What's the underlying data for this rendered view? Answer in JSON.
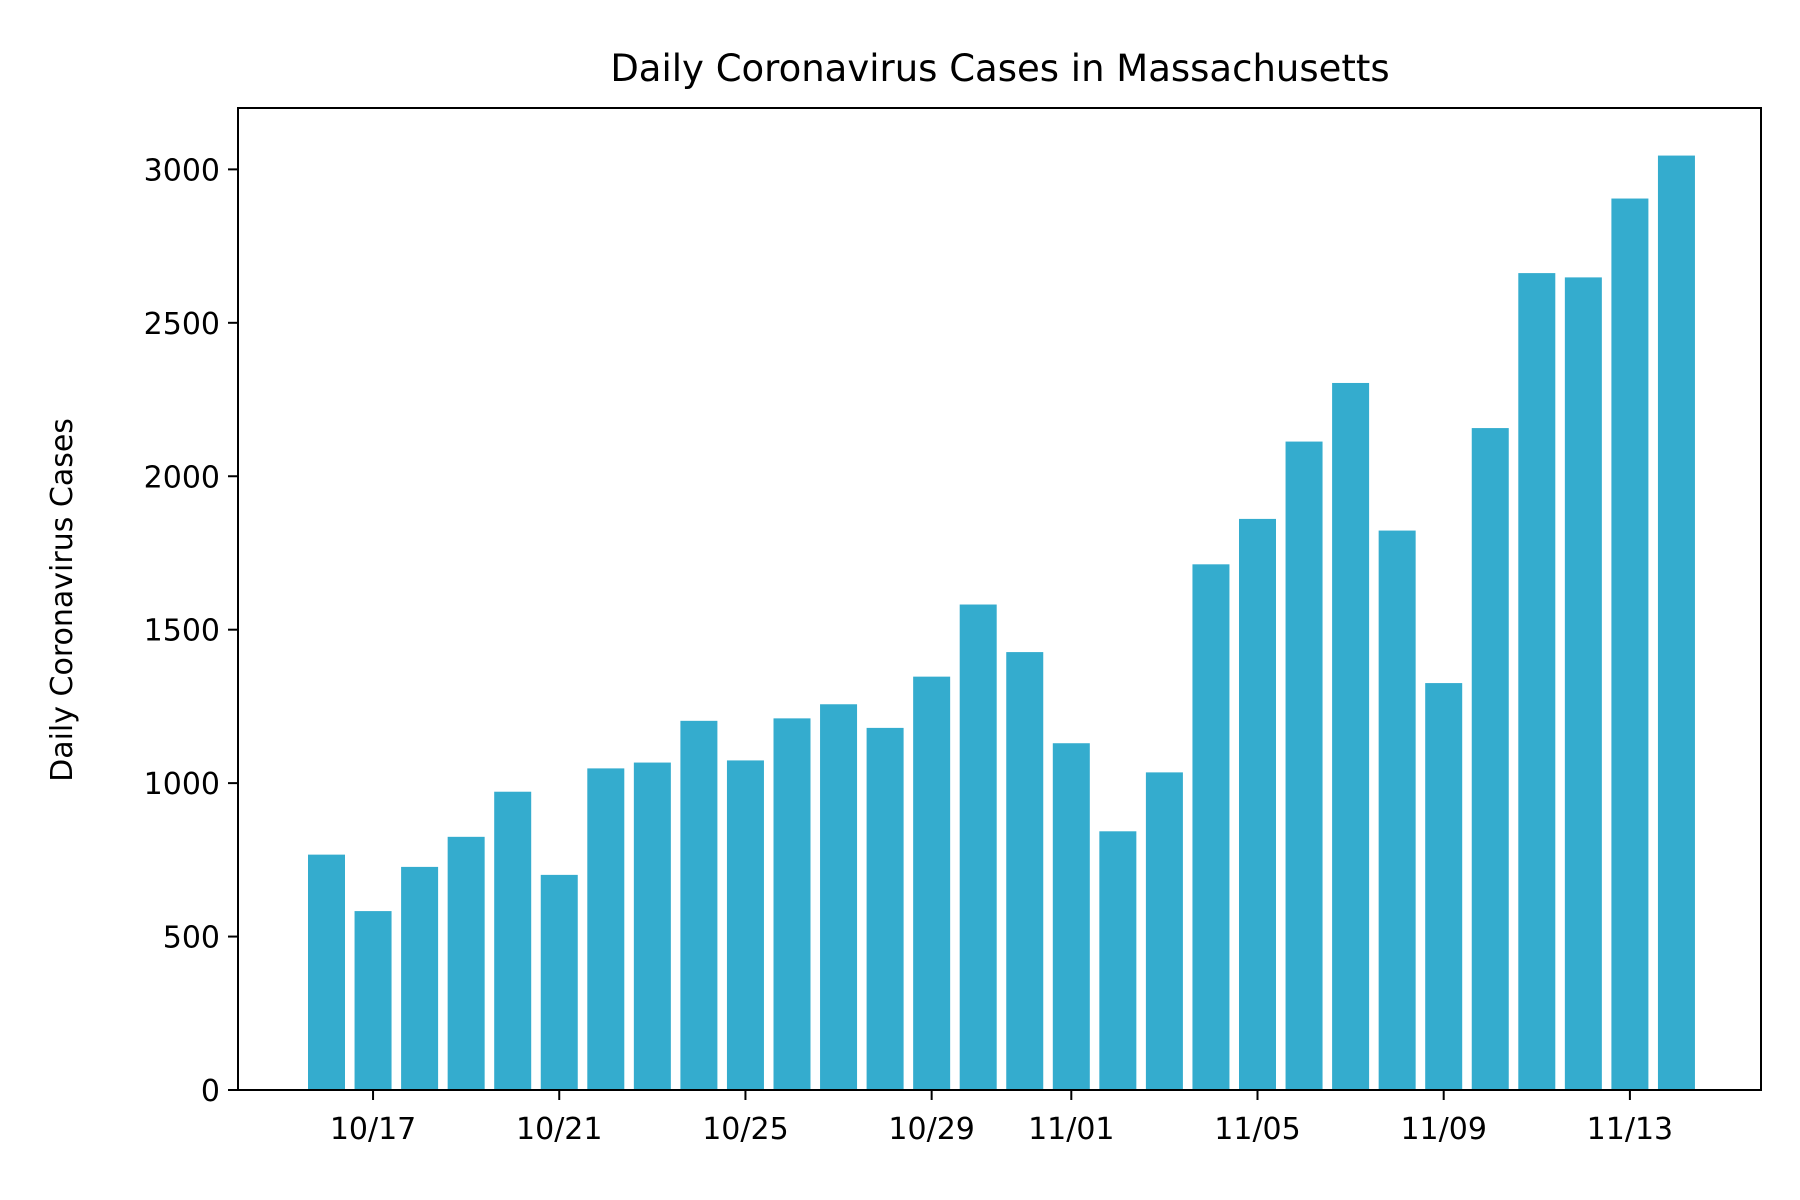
{
  "chart_data": {
    "type": "bar",
    "title": "Daily Coronavirus Cases in Massachusetts",
    "xlabel": "",
    "ylabel": "Daily Coronavirus Cases",
    "categories": [
      "10/16",
      "10/17",
      "10/18",
      "10/19",
      "10/20",
      "10/21",
      "10/22",
      "10/23",
      "10/24",
      "10/25",
      "10/26",
      "10/27",
      "10/28",
      "10/29",
      "10/30",
      "10/31",
      "11/01",
      "11/02",
      "11/03",
      "11/04",
      "11/05",
      "11/06",
      "11/07",
      "11/08",
      "11/09",
      "11/10",
      "11/11",
      "11/12",
      "11/13",
      "11/14"
    ],
    "values": [
      767,
      583,
      727,
      825,
      972,
      701,
      1048,
      1067,
      1203,
      1074,
      1211,
      1257,
      1180,
      1347,
      1582,
      1427,
      1130,
      843,
      1035,
      1713,
      1861,
      2113,
      2304,
      1823,
      1326,
      2157,
      2662,
      2648,
      2905,
      3045
    ],
    "x_tick_labels": [
      {
        "label": "10/17",
        "index": 1
      },
      {
        "label": "10/21",
        "index": 5
      },
      {
        "label": "10/25",
        "index": 9
      },
      {
        "label": "10/29",
        "index": 13
      },
      {
        "label": "11/01",
        "index": 16
      },
      {
        "label": "11/05",
        "index": 20
      },
      {
        "label": "11/09",
        "index": 24
      },
      {
        "label": "11/13",
        "index": 28
      }
    ],
    "y_ticks": [
      0,
      500,
      1000,
      1500,
      2000,
      2500,
      3000
    ],
    "ylim": [
      0,
      3200
    ],
    "bar_color": "#34acce",
    "grid": false,
    "legend": "none"
  }
}
